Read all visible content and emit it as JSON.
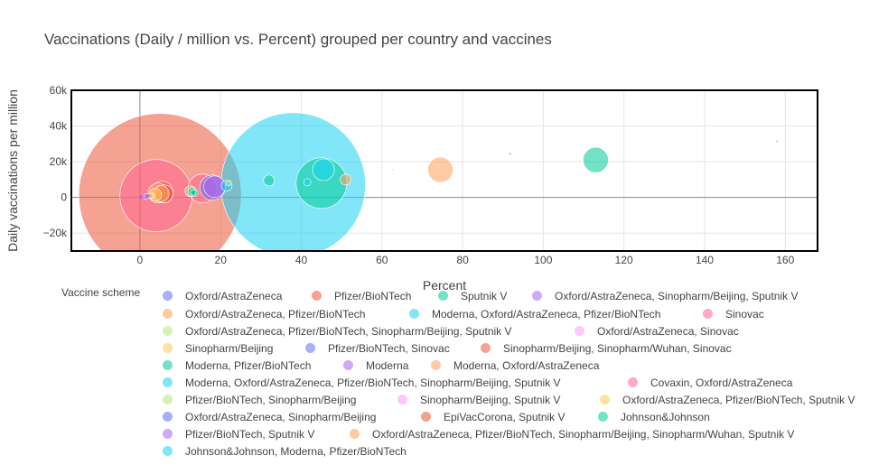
{
  "chart_data": {
    "type": "scatter",
    "title": "Vaccinations (Daily / million vs. Percent) grouped per country and vaccines",
    "xlabel": "Percent",
    "ylabel": "Daily vaccinations per million",
    "xlim": [
      -17,
      168
    ],
    "ylim": [
      -30000,
      60000
    ],
    "x_ticks": [
      0,
      20,
      40,
      60,
      80,
      100,
      120,
      140,
      160
    ],
    "x_tick_labels": [
      "0",
      "20",
      "40",
      "60",
      "80",
      "100",
      "120",
      "140",
      "160"
    ],
    "y_ticks": [
      -20000,
      0,
      20000,
      40000,
      60000
    ],
    "y_tick_labels": [
      "−20k",
      "0",
      "20k",
      "40k",
      "60k"
    ],
    "grid": true,
    "legend_title": "Vaccine scheme",
    "legend_placement": "bottom",
    "series": [
      {
        "name": "Oxford/AstraZeneca",
        "color": "#636efa",
        "points": [
          {
            "x": 0.3,
            "y": 300,
            "size": 2
          },
          {
            "x": 1.5,
            "y": 500,
            "size": 3
          },
          {
            "x": 18,
            "y": 5500,
            "size": 14
          }
        ]
      },
      {
        "name": "Pfizer/BioNTech",
        "color": "#ef553b",
        "points": [
          {
            "x": 5,
            "y": 1500,
            "size": 90
          }
        ]
      },
      {
        "name": "Sputnik V",
        "color": "#00cc96",
        "points": [
          {
            "x": 13,
            "y": 3000,
            "size": 5
          }
        ]
      },
      {
        "name": "Oxford/AstraZeneca, Sinopharm/Beijing, Sputnik V",
        "color": "#ab63fa",
        "points": [
          {
            "x": 18.5,
            "y": 6000,
            "size": 12
          }
        ]
      },
      {
        "name": "Oxford/AstraZeneca, Pfizer/BioNTech",
        "color": "#ffa15a",
        "points": [
          {
            "x": 4.5,
            "y": 2500,
            "size": 11
          },
          {
            "x": 74.5,
            "y": 15500,
            "size": 14
          },
          {
            "x": 51,
            "y": 10000,
            "size": 6
          }
        ]
      },
      {
        "name": "Moderna, Oxford/AstraZeneca, Pfizer/BioNTech",
        "color": "#19d3f3",
        "points": [
          {
            "x": 38,
            "y": 7000,
            "size": 80
          }
        ]
      },
      {
        "name": "Sinovac",
        "color": "#ff6692",
        "points": [
          {
            "x": 4,
            "y": 1000,
            "size": 40
          }
        ]
      },
      {
        "name": "Oxford/AstraZeneca, Pfizer/BioNTech, Sinopharm/Beijing, Sputnik V",
        "color": "#b6e880",
        "points": [
          {
            "x": 12.5,
            "y": 3500,
            "size": 6
          }
        ]
      },
      {
        "name": "Oxford/AstraZeneca, Sinovac",
        "color": "#ff97ff",
        "points": [
          {
            "x": 0.8,
            "y": 600,
            "size": 2
          }
        ]
      },
      {
        "name": "Sinopharm/Beijing",
        "color": "#fecb52",
        "points": [
          {
            "x": 3.8,
            "y": 1500,
            "size": 7
          },
          {
            "x": 62.8,
            "y": 15500,
            "size": 1
          }
        ]
      },
      {
        "name": "Pfizer/BioNTech, Sinovac",
        "color": "#636efa",
        "points": [
          {
            "x": 91.8,
            "y": 24500,
            "size": 1
          },
          {
            "x": 158,
            "y": 31500,
            "size": 1
          }
        ]
      },
      {
        "name": "Sinopharm/Beijing, Sinopharm/Wuhan, Sinovac",
        "color": "#ef553b",
        "points": [
          {
            "x": 5.5,
            "y": 3000,
            "size": 12
          }
        ]
      },
      {
        "name": "Moderna, Pfizer/BioNTech",
        "color": "#00cc96",
        "points": [
          {
            "x": 113,
            "y": 21000,
            "size": 14
          },
          {
            "x": 32,
            "y": 9500,
            "size": 6
          },
          {
            "x": 45,
            "y": 8000,
            "size": 28
          },
          {
            "x": 13.5,
            "y": 2500,
            "size": 4
          }
        ]
      },
      {
        "name": "Moderna",
        "color": "#ab63fa",
        "points": [
          {
            "x": 0.7,
            "y": 400,
            "size": 2
          }
        ]
      },
      {
        "name": "Moderna, Oxford/AstraZeneca",
        "color": "#ffa15a",
        "points": [
          {
            "x": 5.2,
            "y": 2200,
            "size": 9
          }
        ]
      },
      {
        "name": "Moderna, Oxford/AstraZeneca, Pfizer/BioNTech, Sinopharm/Beijing, Sputnik V",
        "color": "#19d3f3",
        "points": [
          {
            "x": 45.5,
            "y": 15500,
            "size": 12
          },
          {
            "x": 21.5,
            "y": 6500,
            "size": 6
          }
        ]
      },
      {
        "name": "Covaxin, Oxford/AstraZeneca",
        "color": "#ff6692",
        "points": [
          {
            "x": 15.5,
            "y": 5000,
            "size": 16
          }
        ]
      },
      {
        "name": "Pfizer/BioNTech, Sinopharm/Beijing",
        "color": "#b6e880",
        "points": [
          {
            "x": 22,
            "y": 8000,
            "size": 3
          }
        ]
      },
      {
        "name": "Sinopharm/Beijing, Sputnik V",
        "color": "#ff97ff",
        "points": [
          {
            "x": 1.2,
            "y": 600,
            "size": 2
          }
        ]
      },
      {
        "name": "Oxford/AstraZeneca, Pfizer/BioNTech, Sputnik V",
        "color": "#fecb52",
        "points": [
          {
            "x": 3,
            "y": 1000,
            "size": 3
          }
        ]
      },
      {
        "name": "Oxford/AstraZeneca, Sinopharm/Beijing",
        "color": "#636efa",
        "points": [
          {
            "x": 2,
            "y": 800,
            "size": 2
          }
        ]
      },
      {
        "name": "EpiVacCorona, Sputnik V",
        "color": "#ef553b",
        "points": [
          {
            "x": 6,
            "y": 2000,
            "size": 10
          }
        ]
      },
      {
        "name": "Johnson&Johnson",
        "color": "#00cc96",
        "points": [
          {
            "x": 13.2,
            "y": 2800,
            "size": 3
          }
        ]
      },
      {
        "name": "Pfizer/BioNTech, Sputnik V",
        "color": "#ab63fa",
        "points": [
          {
            "x": 1.8,
            "y": 700,
            "size": 2
          }
        ]
      },
      {
        "name": "Oxford/AstraZeneca, Pfizer/BioNTech, Sinopharm/Beijing, Sinopharm/Wuhan, Sputnik V",
        "color": "#ffa15a",
        "points": [
          {
            "x": 2.5,
            "y": 900,
            "size": 3
          }
        ]
      },
      {
        "name": "Johnson&Johnson, Moderna, Pfizer/BioNTech",
        "color": "#19d3f3",
        "points": [
          {
            "x": 41.5,
            "y": 8500,
            "size": 4
          }
        ]
      }
    ]
  }
}
